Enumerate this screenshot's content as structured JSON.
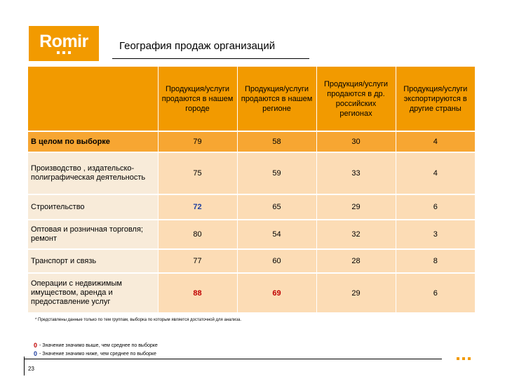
{
  "logo": {
    "text": "Romir"
  },
  "title": "География продаж организаций",
  "table": {
    "headers": [
      "",
      "Продукция/услуги продаются в нашем городе",
      "Продукция/услуги продаются в нашем регионе",
      "Продукция/услуги продаются в др. российских регионах",
      "Продукция/услуги экспортируются в другие страны"
    ],
    "rows": [
      {
        "label": "В целом по выборке",
        "values": [
          "79",
          "58",
          "30",
          "4"
        ]
      },
      {
        "label": "Производство , издательско-полиграфическая деятельность",
        "values": [
          "75",
          "59",
          "33",
          "4"
        ]
      },
      {
        "label": "Строительство",
        "values": [
          "72",
          "65",
          "29",
          "6"
        ]
      },
      {
        "label": "Оптовая и розничная торговля; ремонт",
        "values": [
          "80",
          "54",
          "32",
          "3"
        ]
      },
      {
        "label": "Транспорт и связь",
        "values": [
          "77",
          "60",
          "28",
          "8"
        ]
      },
      {
        "label": "Операции с недвижимым имуществом, аренда и предоставление услуг",
        "values": [
          "88",
          "69",
          "29",
          "6"
        ]
      }
    ]
  },
  "footnote": "* Представлены данные только по тем группам, выборка по которым является достаточной для анализа.",
  "legend": {
    "high_mark": "0",
    "high_text": "- Значение значимо выше, чем среднее по выборке",
    "low_mark": "0",
    "low_text": "- Значение значимо ниже, чем среднее по выборке"
  },
  "page_number": "23",
  "colors": {
    "accent": "#f29a00",
    "cell": "#fcdcb5",
    "label_cell": "#f8ebd9",
    "high": "#c00000",
    "low": "#1f3f9f"
  }
}
